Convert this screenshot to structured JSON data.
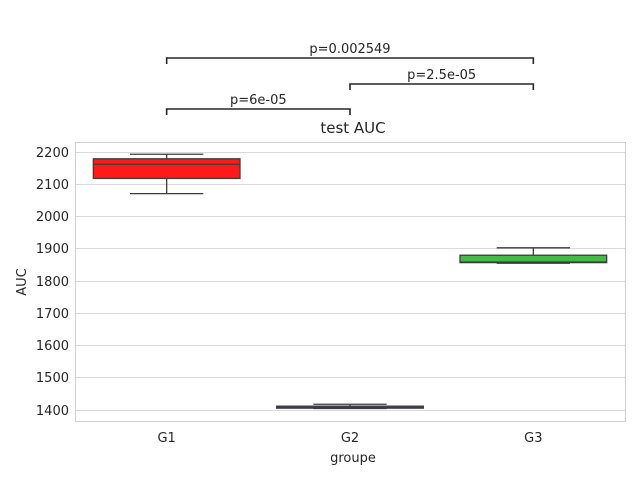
{
  "chart_data": {
    "type": "box",
    "title": "test AUC",
    "xlabel": "groupe",
    "ylabel": "AUC",
    "ylim": [
      1365,
      2230
    ],
    "yticks": [
      1400,
      1500,
      1600,
      1700,
      1800,
      1900,
      2000,
      2100,
      2200
    ],
    "grid": true,
    "categories": [
      "G1",
      "G2",
      "G3"
    ],
    "boxes": [
      {
        "category": "G1",
        "min": 2070,
        "q1": 2117,
        "median": 2161,
        "q3": 2178,
        "max": 2192,
        "color": "#ff1a1a"
      },
      {
        "category": "G2",
        "min": 1404,
        "q1": 1405,
        "median": 1407,
        "q3": 1411,
        "max": 1417,
        "color": "#4a4ab8"
      },
      {
        "category": "G3",
        "min": 1854,
        "q1": 1856,
        "median": 1858,
        "q3": 1879,
        "max": 1902,
        "color": "#44bb44"
      }
    ],
    "annotations": [
      {
        "from": "G1",
        "to": "G3",
        "text": "p=0.002549",
        "level": 3
      },
      {
        "from": "G2",
        "to": "G3",
        "text": "p=2.5e-05",
        "level": 2
      },
      {
        "from": "G1",
        "to": "G2",
        "text": "p=6e-05",
        "level": 1
      }
    ]
  }
}
